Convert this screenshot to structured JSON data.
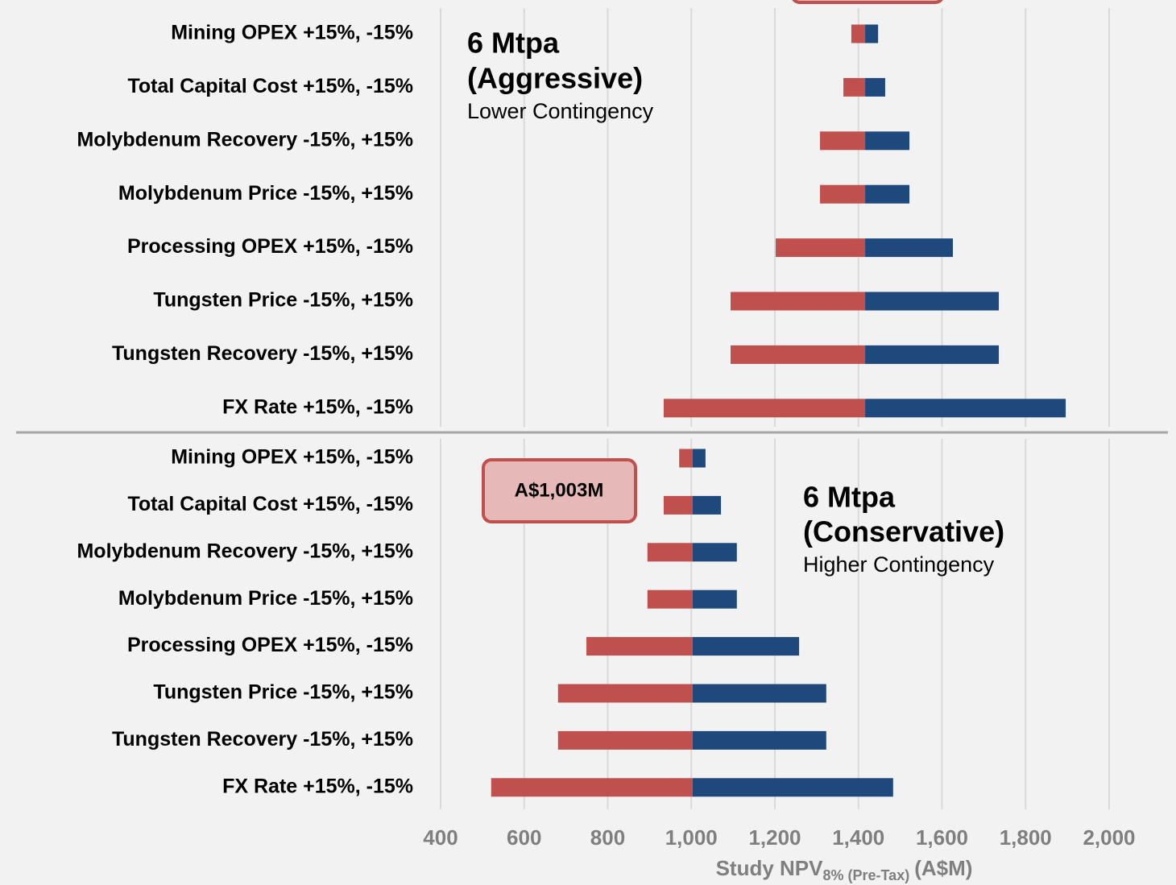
{
  "chart_data": [
    {
      "type": "tornado",
      "annotations": [
        "6 Mtpa",
        "(Aggressive)",
        "Lower Contingency"
      ],
      "categories": [
        "Mining OPEX +15%, -15%",
        "Total Capital Cost +15%, -15%",
        "Molybdenum Recovery -15%, +15%",
        "Molybdenum Price -15%, +15%",
        "Processing OPEX +15%, -15%",
        "Tungsten Price -15%, +15%",
        "Tungsten Recovery -15%, +15%",
        "FX Rate +15%, -15%"
      ],
      "base": 1416,
      "series": [
        {
          "color": "#c0504d",
          "values": [
            1383,
            1364,
            1308,
            1308,
            1202,
            1094,
            1094,
            934
          ]
        },
        {
          "color": "#1f497d",
          "values": [
            1447,
            1464,
            1522,
            1522,
            1626,
            1736,
            1736,
            1896
          ]
        }
      ],
      "xlim": [
        400,
        2000
      ],
      "xticks": [
        400,
        600,
        800,
        {
          "value": 1000,
          "label": "1,000"
        },
        {
          "value": 1200,
          "label": "1,200"
        },
        {
          "value": 1400,
          "label": "1,400"
        },
        {
          "value": 1600,
          "label": "1,600"
        },
        {
          "value": 1800,
          "label": "1,800"
        },
        {
          "value": 2000,
          "label": "2,000"
        }
      ],
      "grid": true
    },
    {
      "type": "tornado",
      "annotations": [
        "6 Mtpa",
        "(Conservative)",
        "Higher Contingency"
      ],
      "callout": "A$1,003M",
      "categories": [
        "Mining OPEX +15%, -15%",
        "Total Capital Cost +15%, -15%",
        "Molybdenum Recovery -15%, +15%",
        "Molybdenum Price -15%, +15%",
        "Processing OPEX +15%, -15%",
        "Tungsten Price -15%, +15%",
        "Tungsten Recovery -15%, +15%",
        "FX Rate +15%, -15%"
      ],
      "base": 1003,
      "series": [
        {
          "color": "#c0504d",
          "values": [
            971,
            934,
            895,
            895,
            749,
            681,
            681,
            521
          ]
        },
        {
          "color": "#1f497d",
          "values": [
            1034,
            1071,
            1109,
            1109,
            1258,
            1323,
            1323,
            1483
          ]
        }
      ],
      "xlim": [
        400,
        2000
      ],
      "xticks": [
        400,
        600,
        800,
        {
          "value": 1000,
          "label": "1,000"
        },
        {
          "value": 1200,
          "label": "1,200"
        },
        {
          "value": 1400,
          "label": "1,400"
        },
        {
          "value": 1600,
          "label": "1,600"
        },
        {
          "value": 1800,
          "label": "1,800"
        },
        {
          "value": 2000,
          "label": "2,000"
        }
      ],
      "xlabel": "Study NPV",
      "xlabel_sub": "8% (Pre-Tax)",
      "xlabel_suffix": "(A$M)",
      "grid": true
    }
  ]
}
